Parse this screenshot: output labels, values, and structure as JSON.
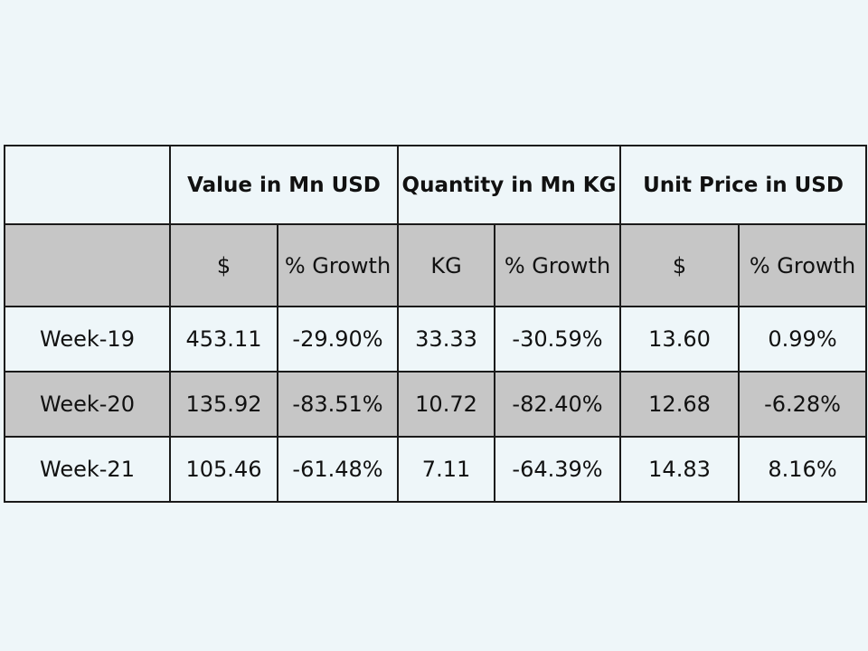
{
  "table": {
    "group_headers": [
      {
        "label": "",
        "span": 1
      },
      {
        "label": "Value in Mn USD",
        "span": 2
      },
      {
        "label": "Quantity in Mn KG",
        "span": 2
      },
      {
        "label": "Unit Price in USD",
        "span": 2
      }
    ],
    "sub_headers": [
      "",
      "$",
      "% Growth",
      "KG",
      "% Growth",
      "$",
      "% Growth"
    ],
    "rows": [
      {
        "week": "Week-19",
        "value": "453.11",
        "value_growth": "-29.90%",
        "qty": "33.33",
        "qty_growth": "-30.59%",
        "price": "13.60",
        "price_growth": "0.99%"
      },
      {
        "week": "Week-20",
        "value": "135.92",
        "value_growth": "-83.51%",
        "qty": "10.72",
        "qty_growth": "-82.40%",
        "price": "12.68",
        "price_growth": "-6.28%"
      },
      {
        "week": "Week-21",
        "value": "105.46",
        "value_growth": "-61.48%",
        "qty": "7.11",
        "qty_growth": "-64.39%",
        "price": "14.83",
        "price_growth": "8.16%"
      }
    ]
  },
  "colors": {
    "background": "#eef6f9",
    "shaded_row": "#c6c6c6",
    "border": "#1a1a1a"
  }
}
